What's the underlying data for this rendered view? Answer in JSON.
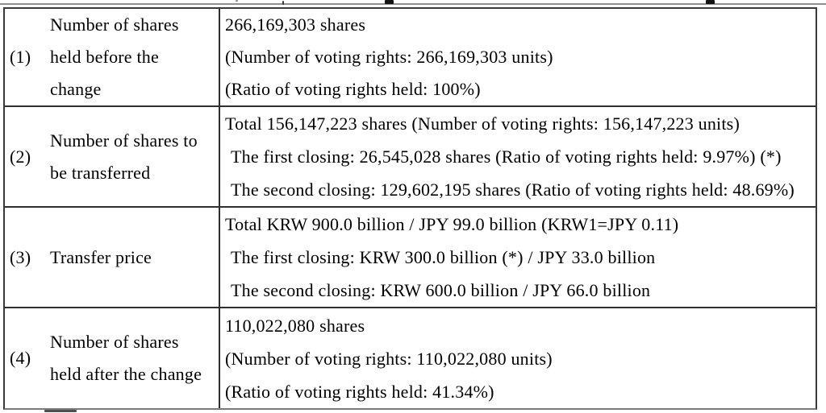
{
  "document": {
    "colors": {
      "background": "#ffffff",
      "text": "#000000",
      "table_border": "#2e2e2e",
      "bottom_border": "#7a7a7a"
    },
    "table": {
      "rows": [
        {
          "number": "(1)",
          "label_lines": [
            "Number of shares",
            "held before the",
            "change"
          ],
          "details": [
            "266,169,303 shares",
            "(Number of voting rights: 266,169,303 units)",
            "(Ratio of voting rights held: 100%)"
          ]
        },
        {
          "number": "(2)",
          "label_lines": [
            "Number of shares to",
            "be transferred"
          ],
          "details": [
            "Total 156,147,223 shares (Number of voting rights: 156,147,223 units)",
            "The first closing: 26,545,028 shares (Ratio of voting rights held: 9.97%) (*)",
            "The second closing: 129,602,195 shares (Ratio of voting rights held: 48.69%)"
          ]
        },
        {
          "number": "(3)",
          "label_lines": [
            "Transfer price"
          ],
          "details": [
            "Total KRW 900.0 billion / JPY 99.0 billion (KRW1=JPY 0.11)",
            "The first closing: KRW 300.0 billion (*) / JPY 33.0 billion",
            "The second closing: KRW 600.0 billion / JPY 66.0 billion"
          ]
        },
        {
          "number": "(4)",
          "label_lines": [
            "Number of shares",
            "held after the change"
          ],
          "details": [
            "110,022,080 shares",
            "(Number of voting rights: 110,022,080 units)",
            "(Ratio of voting rights held: 41.34%)"
          ]
        }
      ]
    }
  }
}
